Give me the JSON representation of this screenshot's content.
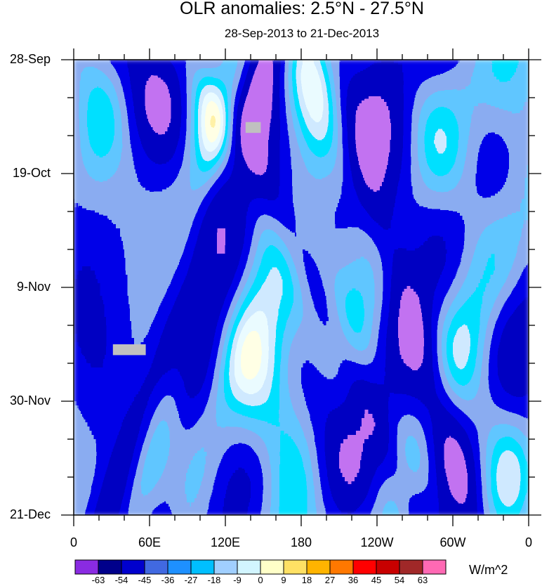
{
  "chart_data": {
    "type": "heatmap",
    "title": "OLR anomalies: 2.5°N - 27.5°N",
    "subtitle": "28-Sep-2013 to 21-Dec-2013",
    "x_axis": {
      "range": [
        0,
        360
      ],
      "ticks": [
        {
          "lon": 0,
          "label": "0"
        },
        {
          "lon": 60,
          "label": "60E"
        },
        {
          "lon": 120,
          "label": "120E"
        },
        {
          "lon": 180,
          "label": "180"
        },
        {
          "lon": 240,
          "label": "120W"
        },
        {
          "lon": 300,
          "label": "60W"
        },
        {
          "lon": 360,
          "label": "0"
        }
      ]
    },
    "y_axis": {
      "range_days": [
        0,
        84
      ],
      "ticks": [
        {
          "day": 0,
          "label": "28-Sep"
        },
        {
          "day": 21,
          "label": "19-Oct"
        },
        {
          "day": 42,
          "label": "9-Nov"
        },
        {
          "day": 63,
          "label": "30-Nov"
        },
        {
          "day": 84,
          "label": "21-Dec"
        }
      ]
    },
    "colorbar": {
      "units": "W/m^2",
      "levels": [
        -63,
        -54,
        -45,
        -36,
        -27,
        -18,
        -9,
        0,
        9,
        18,
        27,
        36,
        45,
        54,
        63
      ],
      "colors": [
        "#8a2be2",
        "#00008b",
        "#0000cd",
        "#4169e1",
        "#1e90ff",
        "#00bfff",
        "#a0cfff",
        "#d2f5ff",
        "#ffffc8",
        "#ffe164",
        "#ffb400",
        "#ff7800",
        "#ff0000",
        "#c80000",
        "#a02828",
        "#ff69b4"
      ]
    },
    "missing_color": "#c0c0c0"
  }
}
